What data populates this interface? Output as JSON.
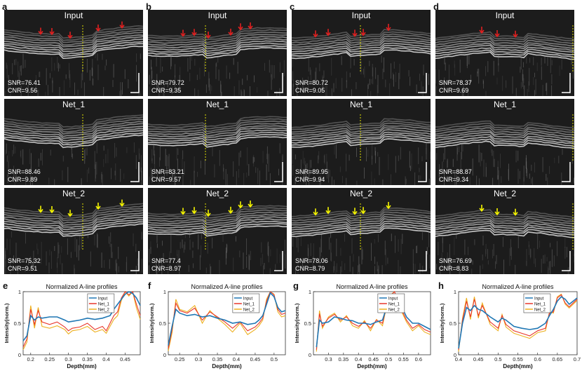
{
  "panels": [
    {
      "letter": "a",
      "rows": [
        {
          "title": "Input",
          "snr": "SNR=76.41",
          "cnr": "CNR=9.56"
        },
        {
          "title": "Net_1",
          "snr": "SNR=88.46",
          "cnr": "CNR=9.89"
        },
        {
          "title": "Net_2",
          "snr": "SNR=75.32",
          "cnr": "CNR=9.51"
        }
      ]
    },
    {
      "letter": "b",
      "rows": [
        {
          "title": "Input",
          "snr": "SNR=79.72",
          "cnr": "CNR=9.35"
        },
        {
          "title": "Net_1",
          "snr": "SNR=83.21",
          "cnr": "CNR=9.57"
        },
        {
          "title": "Net_2",
          "snr": "SNR=77.4",
          "cnr": "CNR=8.97"
        }
      ]
    },
    {
      "letter": "c",
      "rows": [
        {
          "title": "Input",
          "snr": "SNR=80.72",
          "cnr": "CNR=9.05"
        },
        {
          "title": "Net_1",
          "snr": "SNR=89.95",
          "cnr": "CNR=9.94"
        },
        {
          "title": "Net_2",
          "snr": "SNR=78.06",
          "cnr": "CNR=8.79"
        }
      ]
    },
    {
      "letter": "d",
      "rows": [
        {
          "title": "Input",
          "snr": "SNR=78.37",
          "cnr": "CNR=9.69"
        },
        {
          "title": "Net_1",
          "snr": "SNR=88.87",
          "cnr": "CNR=9.34"
        },
        {
          "title": "Net_2",
          "snr": "SNR=76.69",
          "cnr": "CNR=8.83"
        }
      ]
    }
  ],
  "colors": {
    "input": "#1f77b4",
    "net1": "#e8352a",
    "net2": "#edb120",
    "red_arrow": "#e02020",
    "yellow_arrow": "#f5f500"
  },
  "chart_data": [
    {
      "panel": "e",
      "type": "line",
      "title": "Normalized A-line profiles",
      "xlabel": "Depth(mm)",
      "ylabel": "Intensity(norm.)",
      "xlim": [
        0.18,
        0.49
      ],
      "ylim": [
        0,
        1
      ],
      "xticks": [
        0.2,
        0.25,
        0.3,
        0.35,
        0.4,
        0.45
      ],
      "yticks": [
        0,
        0.5,
        1
      ],
      "legend": [
        "Input",
        "Net_1",
        "Net_2"
      ],
      "series": [
        {
          "name": "Input",
          "x": [
            0.18,
            0.19,
            0.2,
            0.21,
            0.22,
            0.23,
            0.25,
            0.27,
            0.29,
            0.3,
            0.31,
            0.33,
            0.35,
            0.37,
            0.39,
            0.4,
            0.41,
            0.42,
            0.43,
            0.44,
            0.45,
            0.46,
            0.47,
            0.48,
            0.49
          ],
          "y": [
            0.22,
            0.3,
            0.62,
            0.55,
            0.6,
            0.58,
            0.6,
            0.6,
            0.55,
            0.52,
            0.53,
            0.55,
            0.58,
            0.56,
            0.58,
            0.6,
            0.62,
            0.72,
            0.8,
            0.88,
            0.96,
            1.0,
            0.97,
            0.9,
            0.78
          ]
        },
        {
          "name": "Net_1",
          "x": [
            0.18,
            0.19,
            0.2,
            0.21,
            0.22,
            0.23,
            0.25,
            0.27,
            0.29,
            0.3,
            0.31,
            0.33,
            0.35,
            0.37,
            0.39,
            0.4,
            0.41,
            0.42,
            0.43,
            0.44,
            0.45,
            0.46,
            0.47,
            0.48,
            0.49
          ],
          "y": [
            0.12,
            0.25,
            0.72,
            0.48,
            0.7,
            0.52,
            0.48,
            0.52,
            0.44,
            0.38,
            0.42,
            0.44,
            0.5,
            0.4,
            0.45,
            0.38,
            0.5,
            0.62,
            0.68,
            0.9,
            1.0,
            0.95,
            1.0,
            0.8,
            0.62
          ]
        },
        {
          "name": "Net_2",
          "x": [
            0.18,
            0.19,
            0.2,
            0.21,
            0.22,
            0.23,
            0.25,
            0.27,
            0.29,
            0.3,
            0.31,
            0.33,
            0.35,
            0.37,
            0.39,
            0.4,
            0.41,
            0.42,
            0.43,
            0.44,
            0.45,
            0.46,
            0.47,
            0.48,
            0.49
          ],
          "y": [
            0.08,
            0.2,
            0.78,
            0.42,
            0.75,
            0.45,
            0.42,
            0.46,
            0.4,
            0.33,
            0.38,
            0.4,
            0.45,
            0.36,
            0.4,
            0.34,
            0.45,
            0.56,
            0.62,
            0.86,
            1.0,
            0.93,
            1.0,
            0.74,
            0.56
          ]
        }
      ]
    },
    {
      "panel": "f",
      "type": "line",
      "title": "Normalized A-line profiles",
      "xlabel": "Depth(mm)",
      "ylabel": "Intensity(norm.)",
      "xlim": [
        0.22,
        0.53
      ],
      "ylim": [
        0,
        1
      ],
      "xticks": [
        0.25,
        0.3,
        0.35,
        0.4,
        0.45,
        0.5
      ],
      "yticks": [
        0,
        0.5,
        1
      ],
      "legend": [
        "Input",
        "Net_1",
        "Net_2"
      ],
      "series": [
        {
          "name": "Input",
          "x": [
            0.22,
            0.23,
            0.24,
            0.25,
            0.27,
            0.29,
            0.31,
            0.33,
            0.35,
            0.37,
            0.39,
            0.41,
            0.43,
            0.45,
            0.46,
            0.47,
            0.48,
            0.49,
            0.5,
            0.51,
            0.52,
            0.53
          ],
          "y": [
            0.15,
            0.45,
            0.72,
            0.66,
            0.62,
            0.64,
            0.6,
            0.62,
            0.58,
            0.55,
            0.5,
            0.52,
            0.48,
            0.5,
            0.55,
            0.62,
            0.8,
            0.98,
            0.92,
            0.75,
            0.68,
            0.7
          ]
        },
        {
          "name": "Net_1",
          "x": [
            0.22,
            0.23,
            0.24,
            0.25,
            0.27,
            0.29,
            0.31,
            0.33,
            0.35,
            0.37,
            0.39,
            0.41,
            0.43,
            0.45,
            0.46,
            0.47,
            0.48,
            0.49,
            0.5,
            0.51,
            0.52,
            0.53
          ],
          "y": [
            0.1,
            0.4,
            0.82,
            0.7,
            0.66,
            0.74,
            0.55,
            0.68,
            0.6,
            0.52,
            0.42,
            0.52,
            0.38,
            0.44,
            0.5,
            0.58,
            0.85,
            1.0,
            0.95,
            0.72,
            0.64,
            0.66
          ]
        },
        {
          "name": "Net_2",
          "x": [
            0.22,
            0.23,
            0.24,
            0.25,
            0.27,
            0.29,
            0.31,
            0.33,
            0.35,
            0.37,
            0.39,
            0.41,
            0.43,
            0.45,
            0.46,
            0.47,
            0.48,
            0.49,
            0.5,
            0.51,
            0.52,
            0.53
          ],
          "y": [
            0.06,
            0.35,
            0.88,
            0.72,
            0.68,
            0.78,
            0.5,
            0.7,
            0.58,
            0.48,
            0.36,
            0.5,
            0.32,
            0.4,
            0.46,
            0.55,
            0.88,
            1.0,
            0.96,
            0.68,
            0.6,
            0.62
          ]
        }
      ]
    },
    {
      "panel": "g",
      "type": "line",
      "title": "Normalized A-line profiles",
      "xlabel": "Depth(mm)",
      "ylabel": "Intensity(norm.)",
      "xlim": [
        0.25,
        0.64
      ],
      "ylim": [
        0,
        1
      ],
      "xticks": [
        0.3,
        0.35,
        0.4,
        0.45,
        0.5,
        0.55,
        0.6
      ],
      "yticks": [
        0,
        0.5,
        1
      ],
      "legend": [
        "Input",
        "Net_1",
        "Net_2"
      ],
      "series": [
        {
          "name": "Input",
          "x": [
            0.26,
            0.27,
            0.28,
            0.3,
            0.32,
            0.34,
            0.36,
            0.38,
            0.4,
            0.42,
            0.44,
            0.46,
            0.48,
            0.5,
            0.52,
            0.54,
            0.56,
            0.58,
            0.6,
            0.62,
            0.64
          ],
          "y": [
            0.12,
            0.55,
            0.5,
            0.52,
            0.6,
            0.58,
            0.55,
            0.54,
            0.5,
            0.5,
            0.48,
            0.52,
            0.55,
            0.85,
            0.95,
            0.8,
            0.6,
            0.5,
            0.5,
            0.45,
            0.4
          ]
        },
        {
          "name": "Net_1",
          "x": [
            0.26,
            0.27,
            0.28,
            0.3,
            0.32,
            0.34,
            0.36,
            0.38,
            0.4,
            0.42,
            0.44,
            0.46,
            0.48,
            0.5,
            0.52,
            0.54,
            0.56,
            0.58,
            0.6,
            0.62,
            0.64
          ],
          "y": [
            0.08,
            0.65,
            0.45,
            0.58,
            0.64,
            0.55,
            0.6,
            0.5,
            0.45,
            0.52,
            0.42,
            0.55,
            0.5,
            0.9,
            1.0,
            0.75,
            0.55,
            0.42,
            0.48,
            0.4,
            0.36
          ]
        },
        {
          "name": "Net_2",
          "x": [
            0.26,
            0.27,
            0.28,
            0.3,
            0.32,
            0.34,
            0.36,
            0.38,
            0.4,
            0.42,
            0.44,
            0.46,
            0.48,
            0.5,
            0.52,
            0.54,
            0.56,
            0.58,
            0.6,
            0.62,
            0.64
          ],
          "y": [
            0.05,
            0.7,
            0.42,
            0.6,
            0.66,
            0.52,
            0.62,
            0.46,
            0.42,
            0.54,
            0.38,
            0.56,
            0.46,
            0.92,
            1.0,
            0.72,
            0.52,
            0.38,
            0.46,
            0.36,
            0.32
          ]
        }
      ]
    },
    {
      "panel": "h",
      "type": "line",
      "title": "Normalized A-line profiles",
      "xlabel": "Depth(mm)",
      "ylabel": "Intensity(norm.)",
      "xlim": [
        0.4,
        0.7
      ],
      "ylim": [
        0,
        1
      ],
      "xticks": [
        0.4,
        0.45,
        0.5,
        0.55,
        0.6,
        0.65,
        0.7
      ],
      "yticks": [
        0,
        0.5,
        1
      ],
      "legend": [
        "Input",
        "Net_1",
        "Net_2"
      ],
      "series": [
        {
          "name": "Input",
          "x": [
            0.4,
            0.41,
            0.42,
            0.43,
            0.44,
            0.45,
            0.46,
            0.48,
            0.5,
            0.51,
            0.52,
            0.54,
            0.56,
            0.58,
            0.6,
            0.62,
            0.63,
            0.64,
            0.65,
            0.66,
            0.67,
            0.68,
            0.69,
            0.7
          ],
          "y": [
            0.1,
            0.5,
            0.75,
            0.7,
            0.78,
            0.72,
            0.7,
            0.6,
            0.52,
            0.58,
            0.55,
            0.45,
            0.42,
            0.4,
            0.42,
            0.5,
            0.62,
            0.72,
            0.85,
            0.92,
            0.88,
            0.8,
            0.85,
            0.9
          ]
        },
        {
          "name": "Net_1",
          "x": [
            0.4,
            0.41,
            0.42,
            0.43,
            0.44,
            0.45,
            0.46,
            0.48,
            0.5,
            0.51,
            0.52,
            0.54,
            0.56,
            0.58,
            0.6,
            0.62,
            0.63,
            0.64,
            0.65,
            0.66,
            0.67,
            0.68,
            0.69,
            0.7
          ],
          "y": [
            0.08,
            0.55,
            0.85,
            0.6,
            0.88,
            0.62,
            0.78,
            0.52,
            0.42,
            0.62,
            0.48,
            0.38,
            0.34,
            0.3,
            0.38,
            0.42,
            0.66,
            0.68,
            0.9,
            0.95,
            0.82,
            0.76,
            0.82,
            0.88
          ]
        },
        {
          "name": "Net_2",
          "x": [
            0.4,
            0.41,
            0.42,
            0.43,
            0.44,
            0.45,
            0.46,
            0.48,
            0.5,
            0.51,
            0.52,
            0.54,
            0.56,
            0.58,
            0.6,
            0.62,
            0.63,
            0.64,
            0.65,
            0.66,
            0.67,
            0.68,
            0.69,
            0.7
          ],
          "y": [
            0.05,
            0.58,
            0.9,
            0.56,
            0.92,
            0.58,
            0.82,
            0.48,
            0.38,
            0.64,
            0.44,
            0.34,
            0.3,
            0.26,
            0.35,
            0.38,
            0.68,
            0.66,
            0.92,
            0.96,
            0.8,
            0.74,
            0.8,
            0.86
          ]
        }
      ]
    }
  ]
}
